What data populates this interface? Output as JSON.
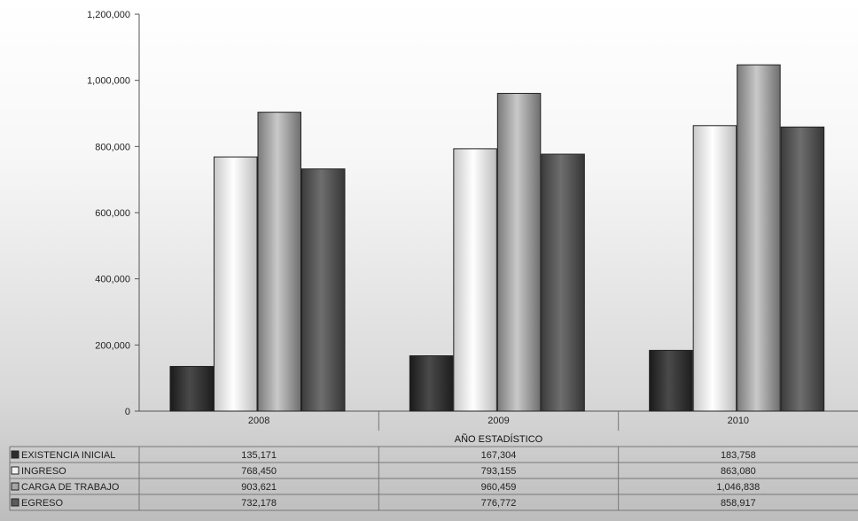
{
  "chart_data": {
    "type": "bar",
    "categories": [
      "2008",
      "2009",
      "2010"
    ],
    "xlabel": "AÑO ESTADÍSTICO",
    "ylabel": "",
    "ylim": [
      0,
      1200000
    ],
    "yticks": [
      "0",
      "200,000",
      "400,000",
      "600,000",
      "800,000",
      "1,000,000",
      "1,200,000"
    ],
    "grid": false,
    "legend_placement": "left of data table",
    "series": [
      {
        "name": "EXISTENCIA INICIAL",
        "values": [
          135171,
          167304,
          183758
        ],
        "labels": [
          "135,171",
          "167,304",
          "183,758"
        ],
        "color": "#2e2e2e"
      },
      {
        "name": "INGRESO",
        "values": [
          768450,
          793155,
          863080
        ],
        "labels": [
          "768,450",
          "793,155",
          "863,080"
        ],
        "color": "#f2f2f2"
      },
      {
        "name": "CARGA DE TRABAJO",
        "values": [
          903621,
          960459,
          1046838
        ],
        "labels": [
          "903,621",
          "960,459",
          "1,046,838"
        ],
        "color": "#a6a6a6"
      },
      {
        "name": "EGRESO",
        "values": [
          732178,
          776772,
          858917
        ],
        "labels": [
          "732,178",
          "776,772",
          "858,917"
        ],
        "color": "#5c5c5c"
      }
    ]
  }
}
